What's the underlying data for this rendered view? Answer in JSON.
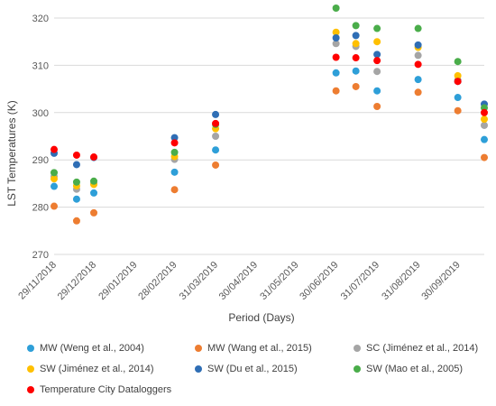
{
  "chart_data": {
    "type": "scatter",
    "ylabel": "LST Temperatures (K)",
    "xlabel": "Period (Days)",
    "ylim": [
      270,
      320
    ],
    "yticks": [
      "270",
      "280",
      "290",
      "300",
      "310",
      "320"
    ],
    "xlim": [
      "2018-11-29",
      "2019-10-20"
    ],
    "xticks": [
      {
        "date": "2018-11-29",
        "label": "29/11/2018"
      },
      {
        "date": "2018-12-29",
        "label": "29/12/2018"
      },
      {
        "date": "2019-01-29",
        "label": "29/01/2019"
      },
      {
        "date": "2019-02-28",
        "label": "28/02/2019"
      },
      {
        "date": "2019-03-31",
        "label": "31/03/2019"
      },
      {
        "date": "2019-04-30",
        "label": "30/04/2019"
      },
      {
        "date": "2019-05-31",
        "label": "31/05/2019"
      },
      {
        "date": "2019-06-30",
        "label": "30/06/2019"
      },
      {
        "date": "2019-07-31",
        "label": "31/07/2019"
      },
      {
        "date": "2019-08-31",
        "label": "31/08/2019"
      },
      {
        "date": "2019-09-30",
        "label": "30/09/2019"
      }
    ],
    "grid": "horizontal",
    "legend_position": "bottom",
    "series": [
      {
        "name": "MW (Weng et al., 2004)",
        "color": "#2e9fd8",
        "x": [
          "2018-11-29",
          "2018-12-16",
          "2018-12-29",
          "2019-02-28",
          "2019-03-31",
          "2019-06-30",
          "2019-07-15",
          "2019-07-31",
          "2019-08-31",
          "2019-09-30",
          "2019-10-20"
        ],
        "y": [
          284.4,
          281.7,
          283.0,
          287.4,
          292.1,
          308.4,
          308.8,
          304.6,
          307.0,
          303.2,
          294.3
        ]
      },
      {
        "name": "MW (Wang et al., 2015)",
        "color": "#ed7d31",
        "x": [
          "2018-11-29",
          "2018-12-16",
          "2018-12-29",
          "2019-02-28",
          "2019-03-31",
          "2019-06-30",
          "2019-07-15",
          "2019-07-31",
          "2019-08-31",
          "2019-09-30",
          "2019-10-20"
        ],
        "y": [
          280.2,
          277.1,
          278.8,
          283.7,
          288.9,
          304.6,
          305.5,
          301.3,
          304.3,
          300.4,
          290.5
        ]
      },
      {
        "name": "SC (Jiménez et al., 2014)",
        "color": "#a5a5a5",
        "x": [
          "2018-11-29",
          "2018-12-16",
          "2018-12-29",
          "2019-02-28",
          "2019-03-31",
          "2019-06-30",
          "2019-07-15",
          "2019-07-31",
          "2019-08-31",
          "2019-09-30",
          "2019-10-20"
        ],
        "y": [
          286.5,
          283.8,
          285.0,
          290.1,
          295.0,
          314.6,
          314.0,
          308.7,
          312.1,
          306.9,
          297.3
        ]
      },
      {
        "name": "SW (Jiménez et al., 2014)",
        "color": "#ffc000",
        "x": [
          "2018-11-29",
          "2018-12-16",
          "2018-12-29",
          "2019-02-28",
          "2019-03-31",
          "2019-06-30",
          "2019-07-15",
          "2019-07-31",
          "2019-08-31",
          "2019-09-30",
          "2019-10-20"
        ],
        "y": [
          286.0,
          284.5,
          284.8,
          290.7,
          296.6,
          317.0,
          314.6,
          315.0,
          313.8,
          307.8,
          298.6
        ]
      },
      {
        "name": "SW (Du et al., 2015)",
        "color": "#2f6eb5",
        "x": [
          "2018-11-29",
          "2018-12-16",
          "2018-12-29",
          "2019-02-28",
          "2019-03-31",
          "2019-06-30",
          "2019-07-15",
          "2019-07-31",
          "2019-08-31",
          "2019-09-30",
          "2019-10-20"
        ],
        "y": [
          291.4,
          289.0,
          290.5,
          294.7,
          299.6,
          315.8,
          316.3,
          312.3,
          314.3,
          306.6,
          301.8
        ]
      },
      {
        "name": "SW (Mao et al., 2005)",
        "color": "#4aad4a",
        "x": [
          "2018-11-29",
          "2018-12-16",
          "2018-12-29",
          "2019-02-28",
          "2019-03-31",
          "2019-06-30",
          "2019-07-15",
          "2019-07-31",
          "2019-08-31",
          "2019-09-30",
          "2019-10-20"
        ],
        "y": [
          287.3,
          285.3,
          285.5,
          291.6,
          297.5,
          322.1,
          318.4,
          317.8,
          317.8,
          310.8,
          301.0
        ]
      },
      {
        "name": "Temperature City Dataloggers",
        "color": "#ff0000",
        "x": [
          "2018-11-29",
          "2018-12-16",
          "2018-12-29",
          "2019-02-28",
          "2019-03-31",
          "2019-06-30",
          "2019-07-15",
          "2019-07-31",
          "2019-08-31",
          "2019-09-30",
          "2019-10-20"
        ],
        "y": [
          292.2,
          291.0,
          290.6,
          293.6,
          297.7,
          311.7,
          311.6,
          311.0,
          310.2,
          306.6,
          300.0
        ]
      }
    ]
  }
}
